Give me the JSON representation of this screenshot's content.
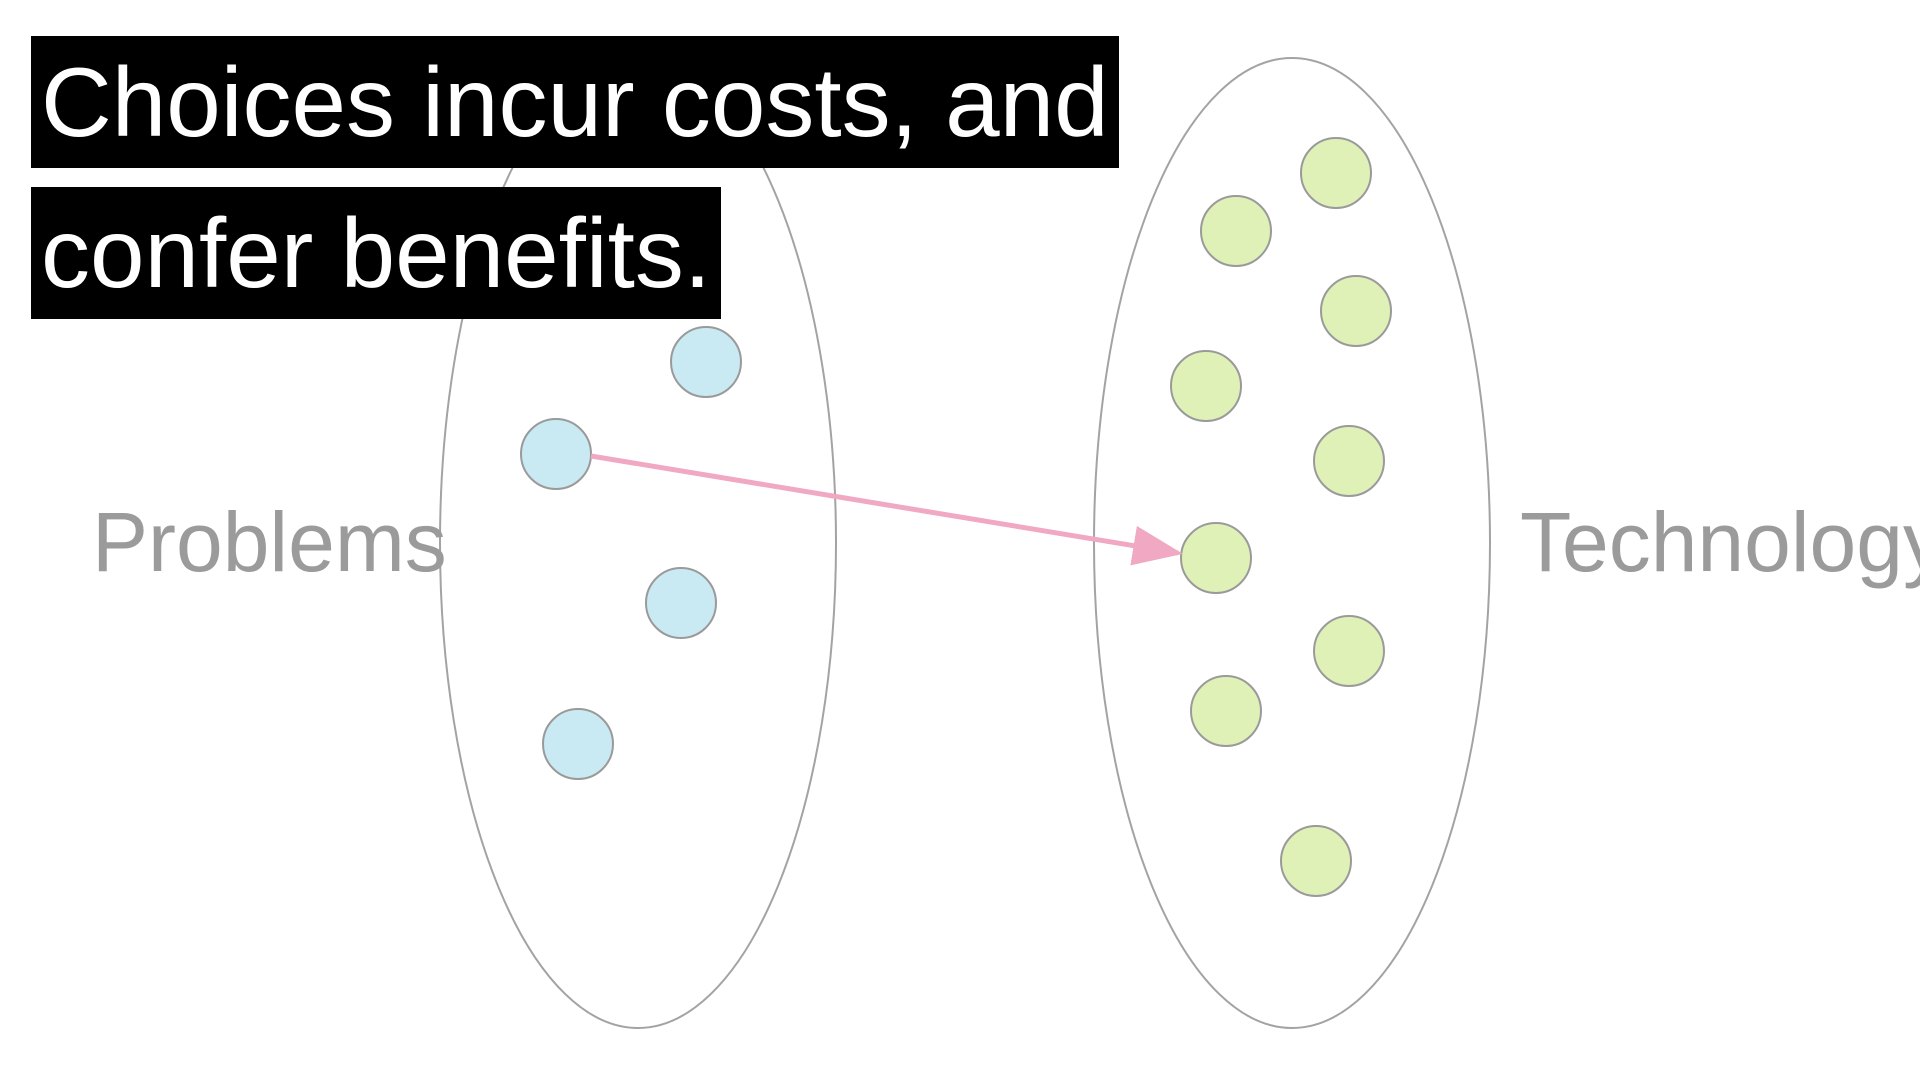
{
  "diagram": {
    "colors": {
      "background": "#ffffff",
      "ellipse_stroke": "#a3a3a3",
      "problem_fill": "#c9eaf3",
      "technology_fill": "#dff1b7",
      "node_stroke": "#9a9a9a",
      "arrow": "#f0a8c3",
      "label_text": "#9b9b9b",
      "caption_bg": "#000000",
      "caption_text": "#ffffff"
    },
    "sets": [
      {
        "id": "problems",
        "label": "Problems",
        "node_count": 5
      },
      {
        "id": "technology",
        "label": "Technology",
        "node_count": 9
      }
    ],
    "arrow": {
      "from": "problems.node.2",
      "to": "technology.node.6"
    },
    "caption": {
      "lines": [
        "Choices incur costs, and",
        "confer benefits."
      ]
    }
  }
}
